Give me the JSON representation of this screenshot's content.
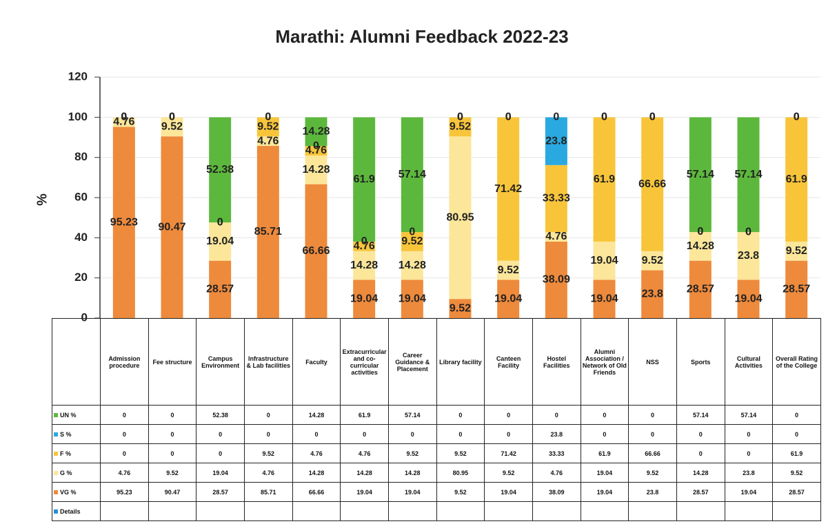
{
  "chart_data": {
    "type": "stacked_bar",
    "title": "Marathi: Alumni Feedback 2022-23",
    "y_label": "%",
    "categories": [
      "Admission procedure",
      "Fee structure",
      "Campus Environment",
      "Infrastructure & Lab facilities",
      "Faculty",
      "Extracurricular and co-curricular activities",
      "Career Guidance & Placement",
      "Library facility",
      "Canteen Facility",
      "Hostel Facilities",
      "Alumni Association / Network of Old Friends",
      "NSS",
      "Sports",
      "Cultural Activities",
      "Overall Rating of the College"
    ],
    "series": [
      {
        "name": "UN %",
        "color": "#5cb83c",
        "values": [
          0,
          0,
          52.38,
          0,
          14.28,
          61.9,
          57.14,
          0,
          0,
          0,
          0,
          0,
          57.14,
          57.14,
          0
        ]
      },
      {
        "name": "S %",
        "color": "#2aa9e0",
        "values": [
          0,
          0,
          0,
          0,
          0,
          0,
          0,
          0,
          0,
          23.8,
          0,
          0,
          0,
          0,
          0
        ]
      },
      {
        "name": "F %",
        "color": "#f8c53a",
        "values": [
          0,
          0,
          0,
          9.52,
          4.76,
          4.76,
          9.52,
          9.52,
          71.42,
          33.33,
          61.9,
          66.66,
          0,
          0,
          61.9
        ]
      },
      {
        "name": "G %",
        "color": "#fbe69a",
        "values": [
          4.76,
          9.52,
          19.04,
          4.76,
          14.28,
          14.28,
          14.28,
          80.95,
          9.52,
          4.76,
          19.04,
          9.52,
          14.28,
          23.8,
          9.52
        ]
      },
      {
        "name": "VG %",
        "color": "#ee8a3c",
        "values": [
          95.23,
          90.47,
          28.57,
          85.71,
          66.66,
          19.04,
          19.04,
          9.52,
          19.04,
          38.09,
          19.04,
          23.8,
          28.57,
          19.04,
          28.57
        ]
      },
      {
        "name": "Details",
        "color": "#2a8fd8",
        "values": [
          null,
          null,
          null,
          null,
          null,
          null,
          null,
          null,
          null,
          null,
          null,
          null,
          null,
          null,
          null
        ]
      }
    ],
    "stack_order": [
      "VG %",
      "G %",
      "F %",
      "S %",
      "UN %"
    ],
    "ylim": [
      0,
      120
    ],
    "yticks": [
      0,
      20,
      40,
      60,
      80,
      100,
      120
    ],
    "grid": true
  }
}
